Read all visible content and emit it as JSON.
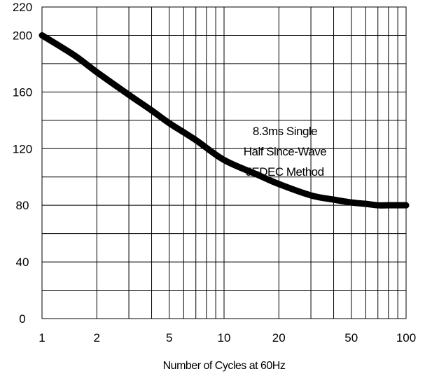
{
  "chart_data": {
    "type": "line",
    "title": "",
    "xlabel": "Number of Cycles at 60Hz",
    "ylabel": "",
    "x_scale": "log",
    "xlim": [
      1,
      100
    ],
    "ylim": [
      0,
      220
    ],
    "x_ticks": [
      1,
      2,
      5,
      10,
      20,
      50,
      100
    ],
    "x_tick_labels": [
      "1",
      "2",
      "5",
      "10",
      "20",
      "50",
      "100"
    ],
    "x_minor_ticks": [
      3,
      4,
      6,
      7,
      8,
      9,
      30,
      40,
      60,
      70,
      80,
      90
    ],
    "y_ticks": [
      0,
      40,
      80,
      120,
      160,
      200,
      220
    ],
    "y_tick_labels": [
      "0",
      "40",
      "80",
      "120",
      "160",
      "200",
      "220"
    ],
    "y_minor_gridlines": [
      20,
      60,
      100,
      140,
      180
    ],
    "grid": true,
    "annotation": [
      "8.3ms Single",
      "Half Since-Wave",
      "JEDEC Method"
    ],
    "series": [
      {
        "x": [
          1,
          1.5,
          2,
          3,
          4,
          5,
          7,
          10,
          15,
          20,
          30,
          40,
          50,
          60,
          70,
          80,
          90,
          100
        ],
        "y": [
          200,
          186,
          174,
          158,
          147,
          138,
          126,
          112,
          102,
          95,
          87,
          84,
          82,
          81,
          80,
          80,
          80,
          80
        ]
      }
    ],
    "colors": {
      "line": "#000000",
      "grid": "#000000",
      "background": "#ffffff"
    }
  }
}
